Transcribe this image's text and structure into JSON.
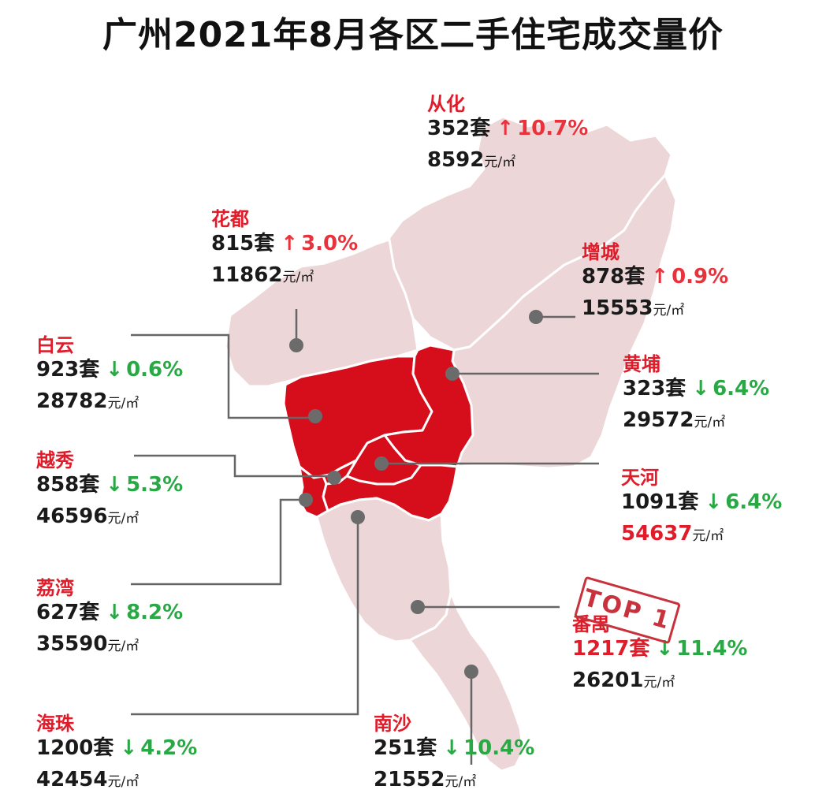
{
  "title": "广州2021年8月各区二手住宅成交量价",
  "unit_sets": "套",
  "unit_price": "元/㎡",
  "stamp": "TOP 1",
  "colors": {
    "up": "#e8323c",
    "down": "#2aa845",
    "name": "#e01c2a",
    "map_light": "#ecd6d8",
    "map_dark": "#d60e1c",
    "border": "#ffffff",
    "leader": "#666666",
    "dot": "#6b6b6b"
  },
  "districts": [
    {
      "key": "conghua",
      "name": "从化",
      "sets": "352",
      "direction": "up",
      "arrow": "↑",
      "change": "10.7%",
      "price": "8592"
    },
    {
      "key": "huadu",
      "name": "花都",
      "sets": "815",
      "direction": "up",
      "arrow": "↑",
      "change": "3.0%",
      "price": "11862"
    },
    {
      "key": "zengcheng",
      "name": "增城",
      "sets": "878",
      "direction": "up",
      "arrow": "↑",
      "change": "0.9%",
      "price": "15553"
    },
    {
      "key": "baiyun",
      "name": "白云",
      "sets": "923",
      "direction": "down",
      "arrow": "↓",
      "change": "0.6%",
      "price": "28782"
    },
    {
      "key": "huangpu",
      "name": "黄埔",
      "sets": "323",
      "direction": "down",
      "arrow": "↓",
      "change": "6.4%",
      "price": "29572"
    },
    {
      "key": "yuexiu",
      "name": "越秀",
      "sets": "858",
      "direction": "down",
      "arrow": "↓",
      "change": "5.3%",
      "price": "46596"
    },
    {
      "key": "tianhe",
      "name": "天河",
      "sets": "1091",
      "direction": "down",
      "arrow": "↓",
      "change": "6.4%",
      "price": "54637",
      "price_highlight": true
    },
    {
      "key": "liwan",
      "name": "荔湾",
      "sets": "627",
      "direction": "down",
      "arrow": "↓",
      "change": "8.2%",
      "price": "35590"
    },
    {
      "key": "panyu",
      "name": "番禺",
      "sets": "1217",
      "direction": "down",
      "arrow": "↓",
      "change": "11.4%",
      "price": "26201",
      "sets_highlight": true
    },
    {
      "key": "haizhu",
      "name": "海珠",
      "sets": "1200",
      "direction": "down",
      "arrow": "↓",
      "change": "4.2%",
      "price": "42454"
    },
    {
      "key": "nansha",
      "name": "南沙",
      "sets": "251",
      "direction": "down",
      "arrow": "↓",
      "change": "10.4%",
      "price": "21552"
    }
  ]
}
